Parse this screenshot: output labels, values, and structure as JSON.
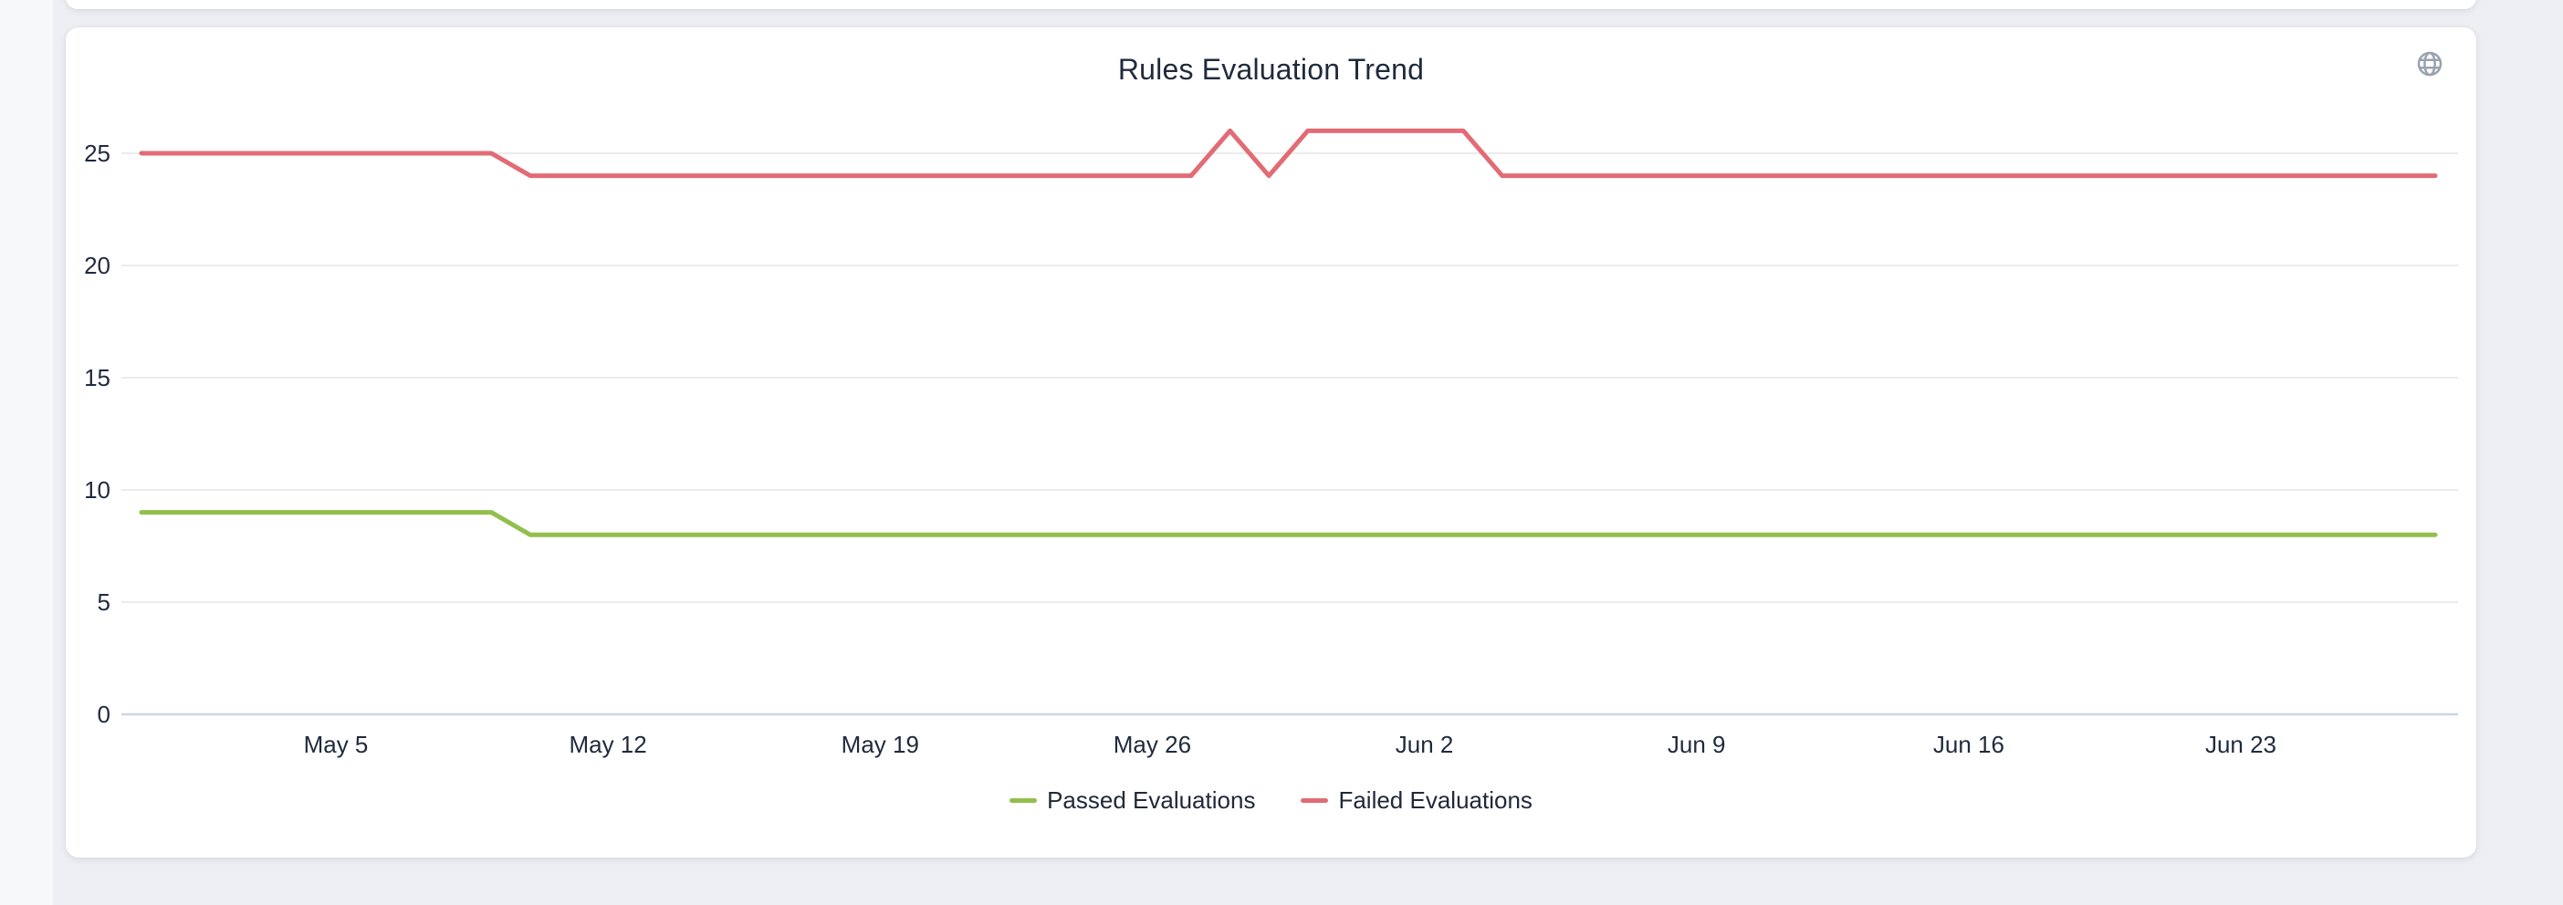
{
  "page": {
    "background_color": "#edeff3",
    "gutter_color": "#f6f8fa",
    "card_color": "#ffffff"
  },
  "header": {
    "icon": "globe-icon",
    "icon_color": "#9aa2ad"
  },
  "colors": {
    "passed_line": "#92bf4b",
    "failed_line": "#e26b74",
    "axis_text": "#1f2a3c",
    "gridline": "#ececec",
    "axis_line": "#ccd5e4"
  },
  "chart_data": {
    "type": "line",
    "title": "Rules Evaluation Trend",
    "xlabel": "",
    "ylabel": "",
    "grid": true,
    "legend_position": "bottom",
    "ylim": [
      0,
      27
    ],
    "yticks": [
      0,
      5,
      10,
      15,
      20,
      25
    ],
    "x_tick_labels": [
      "May 5",
      "May 12",
      "May 19",
      "May 26",
      "Jun 2",
      "Jun 9",
      "Jun 16",
      "Jun 23"
    ],
    "x": [
      "Apr 30",
      "May 1",
      "May 2",
      "May 3",
      "May 4",
      "May 5",
      "May 6",
      "May 7",
      "May 8",
      "May 9",
      "May 10",
      "May 11",
      "May 12",
      "May 13",
      "May 14",
      "May 15",
      "May 16",
      "May 17",
      "May 18",
      "May 19",
      "May 20",
      "May 21",
      "May 22",
      "May 23",
      "May 24",
      "May 25",
      "May 26",
      "May 27",
      "May 28",
      "May 29",
      "May 30",
      "May 31",
      "Jun 1",
      "Jun 2",
      "Jun 3",
      "Jun 4",
      "Jun 5",
      "Jun 6",
      "Jun 7",
      "Jun 8",
      "Jun 9",
      "Jun 10",
      "Jun 11",
      "Jun 12",
      "Jun 13",
      "Jun 14",
      "Jun 15",
      "Jun 16",
      "Jun 17",
      "Jun 18",
      "Jun 19",
      "Jun 20",
      "Jun 21",
      "Jun 22",
      "Jun 23",
      "Jun 24",
      "Jun 25",
      "Jun 26",
      "Jun 27",
      "Jun 28"
    ],
    "series": [
      {
        "name": "Passed Evaluations",
        "color": "#92bf4b",
        "values": [
          9,
          9,
          9,
          9,
          9,
          9,
          9,
          9,
          9,
          9,
          8,
          8,
          8,
          8,
          8,
          8,
          8,
          8,
          8,
          8,
          8,
          8,
          8,
          8,
          8,
          8,
          8,
          8,
          8,
          8,
          8,
          8,
          8,
          8,
          8,
          8,
          8,
          8,
          8,
          8,
          8,
          8,
          8,
          8,
          8,
          8,
          8,
          8,
          8,
          8,
          8,
          8,
          8,
          8,
          8,
          8,
          8,
          8,
          8,
          8
        ]
      },
      {
        "name": "Failed Evaluations",
        "color": "#e26b74",
        "values": [
          25,
          25,
          25,
          25,
          25,
          25,
          25,
          25,
          25,
          25,
          24,
          24,
          24,
          24,
          24,
          24,
          24,
          24,
          24,
          24,
          24,
          24,
          24,
          24,
          24,
          24,
          24,
          24,
          26,
          24,
          26,
          26,
          26,
          26,
          26,
          24,
          24,
          24,
          24,
          24,
          24,
          24,
          24,
          24,
          24,
          24,
          24,
          24,
          24,
          24,
          24,
          24,
          24,
          24,
          24,
          24,
          24,
          24,
          24,
          24
        ]
      }
    ]
  }
}
